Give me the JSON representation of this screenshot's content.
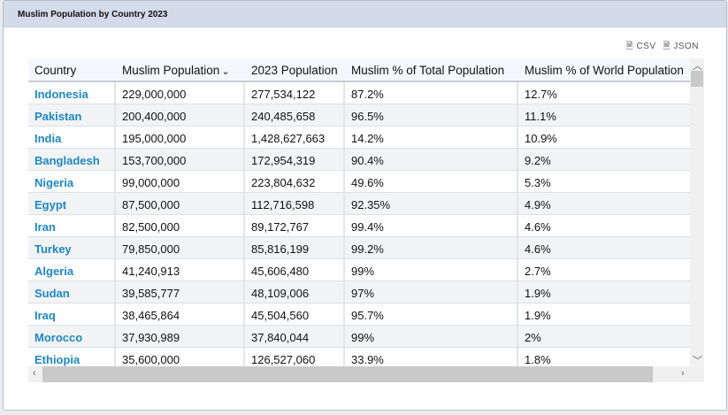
{
  "title": "Muslim Population by Country 2023",
  "exports": {
    "csv": "CSV",
    "json": "JSON"
  },
  "columns": [
    "Country",
    "Muslim Population",
    "2023 Population",
    "Muslim % of Total Population",
    "Muslim % of World Population"
  ],
  "sort_indicator": "⌄",
  "rows": [
    [
      "Indonesia",
      "229,000,000",
      "277,534,122",
      "87.2%",
      "12.7%"
    ],
    [
      "Pakistan",
      "200,400,000",
      "240,485,658",
      "96.5%",
      "11.1%"
    ],
    [
      "India",
      "195,000,000",
      "1,428,627,663",
      "14.2%",
      "10.9%"
    ],
    [
      "Bangladesh",
      "153,700,000",
      "172,954,319",
      "90.4%",
      "9.2%"
    ],
    [
      "Nigeria",
      "99,000,000",
      "223,804,632",
      "49.6%",
      "5.3%"
    ],
    [
      "Egypt",
      "87,500,000",
      "112,716,598",
      "92.35%",
      "4.9%"
    ],
    [
      "Iran",
      "82,500,000",
      "89,172,767",
      "99.4%",
      "4.6%"
    ],
    [
      "Turkey",
      "79,850,000",
      "85,816,199",
      "99.2%",
      "4.6%"
    ],
    [
      "Algeria",
      "41,240,913",
      "45,606,480",
      "99%",
      "2.7%"
    ],
    [
      "Sudan",
      "39,585,777",
      "48,109,006",
      "97%",
      "1.9%"
    ],
    [
      "Iraq",
      "38,465,864",
      "45,504,560",
      "95.7%",
      "1.9%"
    ],
    [
      "Morocco",
      "37,930,989",
      "37,840,044",
      "99%",
      "2%"
    ],
    [
      "Ethiopia",
      "35,600,000",
      "126,527,060",
      "33.9%",
      "1.8%"
    ]
  ]
}
